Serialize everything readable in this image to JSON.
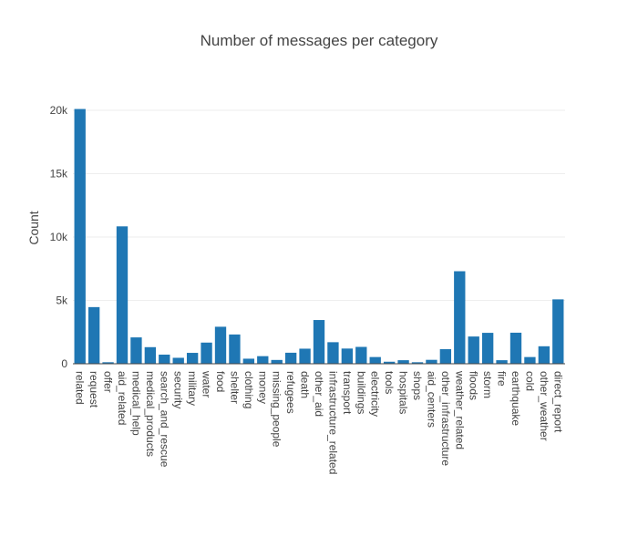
{
  "chart_data": {
    "type": "bar",
    "title": "Number of messages per category",
    "xlabel": "",
    "ylabel": "Count",
    "ylim": [
      0,
      20500
    ],
    "yticks": [
      0,
      5000,
      10000,
      15000,
      20000
    ],
    "ytick_labels": [
      "0",
      "5k",
      "10k",
      "15k",
      "20k"
    ],
    "grid": true,
    "bar_color": "#1f77b4",
    "categories": [
      "related",
      "request",
      "offer",
      "aid_related",
      "medical_help",
      "medical_products",
      "search_and_rescue",
      "security",
      "military",
      "water",
      "food",
      "shelter",
      "clothing",
      "money",
      "missing_people",
      "refugees",
      "death",
      "other_aid",
      "infrastructure_related",
      "transport",
      "buildings",
      "electricity",
      "tools",
      "hospitals",
      "shops",
      "aid_centers",
      "other_infrastructure",
      "weather_related",
      "floods",
      "storm",
      "fire",
      "earthquake",
      "cold",
      "other_weather",
      "direct_report"
    ],
    "values": [
      20100,
      4470,
      120,
      10840,
      2080,
      1310,
      720,
      470,
      860,
      1670,
      2920,
      2310,
      400,
      600,
      300,
      870,
      1190,
      3450,
      1700,
      1200,
      1330,
      530,
      160,
      280,
      120,
      310,
      1150,
      7300,
      2150,
      2440,
      280,
      2450,
      530,
      1380,
      5080
    ]
  }
}
